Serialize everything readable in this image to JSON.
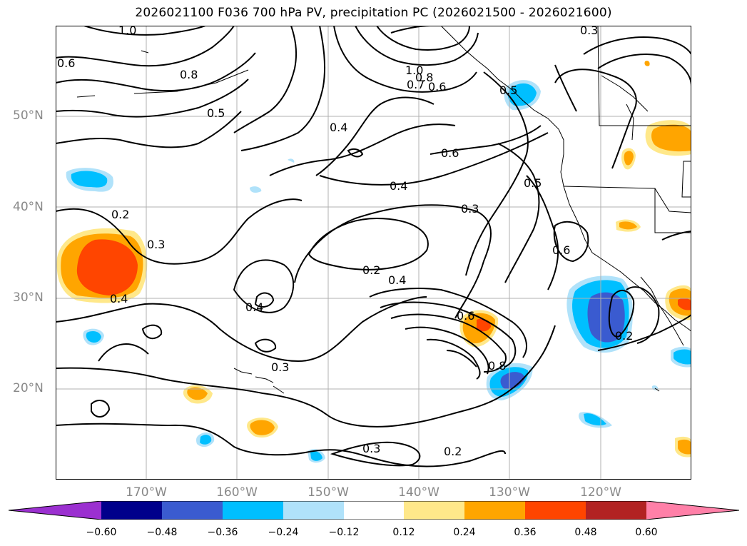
{
  "title": "2026021100 F036 700 hPa PV, precipitation PC (2026021500 - 2026021600)",
  "axes": {
    "lat_labels": [
      "50°N",
      "40°N",
      "30°N",
      "20°N"
    ],
    "lon_labels": [
      "170°W",
      "160°W",
      "150°W",
      "140°W",
      "130°W",
      "120°W"
    ]
  },
  "contour_labels": [
    "1.0",
    "0.3",
    "0.6",
    "0.8",
    "0.5",
    "1.0",
    "0.8",
    "0.7",
    "0.6",
    "0.5",
    "0.4",
    "0.6",
    "0.4",
    "0.5",
    "0.3",
    "0.2",
    "0.3",
    "0.6",
    "0.2",
    "0.4",
    "0.4",
    "0.4",
    "0.6",
    "0.2",
    "0.3",
    "0.8",
    "0.3",
    "0.2"
  ],
  "colorbar": {
    "ticks": [
      "−0.60",
      "−0.48",
      "−0.36",
      "−0.24",
      "−0.12",
      "0.12",
      "0.24",
      "0.36",
      "0.48",
      "0.60"
    ],
    "colors": {
      "under": "#9b30d0",
      "neg060": "#00008b",
      "neg048": "#3a5bd0",
      "neg036": "#00bfff",
      "neg024": "#b0e2fa",
      "zero": "#ffffff",
      "pos012": "#ffe88a",
      "pos024": "#ffa500",
      "pos036": "#ff4500",
      "pos048": "#b22222",
      "over": "#ff80a8"
    }
  }
}
